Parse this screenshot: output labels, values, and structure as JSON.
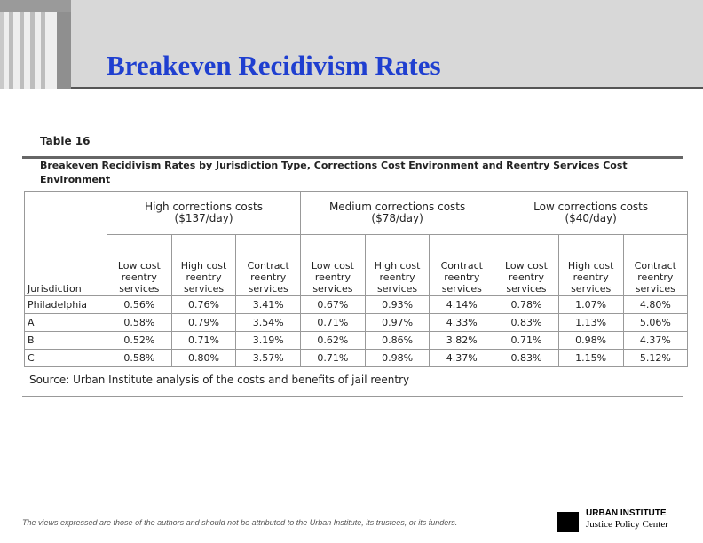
{
  "header": {
    "title": "Breakeven Recidivism Rates"
  },
  "table": {
    "label": "Table 16",
    "caption": "Breakeven Recidivism Rates by Jurisdiction Type, Corrections Cost Environment and Reentry Services Cost Environment",
    "groups": [
      {
        "name": "High corrections costs",
        "cost": "($137/day)"
      },
      {
        "name": "Medium corrections costs",
        "cost": "($78/day)"
      },
      {
        "name": "Low corrections costs",
        "cost": "($40/day)"
      }
    ],
    "columns": [
      "Jurisdiction",
      "Low cost reentry services",
      "High cost reentry services",
      "Contract reentry services",
      "Low cost reentry services",
      "High cost reentry services",
      "Contract reentry services",
      "Low cost reentry services",
      "High cost reentry services",
      "Contract reentry services"
    ],
    "rows": [
      [
        "Philadelphia",
        "0.56%",
        "0.76%",
        "3.41%",
        "0.67%",
        "0.93%",
        "4.14%",
        "0.78%",
        "1.07%",
        "4.80%"
      ],
      [
        "A",
        "0.58%",
        "0.79%",
        "3.54%",
        "0.71%",
        "0.97%",
        "4.33%",
        "0.83%",
        "1.13%",
        "5.06%"
      ],
      [
        "B",
        "0.52%",
        "0.71%",
        "3.19%",
        "0.62%",
        "0.86%",
        "3.82%",
        "0.71%",
        "0.98%",
        "4.37%"
      ],
      [
        "C",
        "0.58%",
        "0.80%",
        "3.57%",
        "0.71%",
        "0.98%",
        "4.37%",
        "0.83%",
        "1.15%",
        "5.12%"
      ]
    ],
    "source": "Source: Urban Institute analysis of the costs and benefits of jail reentry"
  },
  "footer": {
    "disclaimer": "The views expressed are those of the authors and should not be attributed to the Urban Institute, its trustees, or its funders.",
    "org": "URBAN INSTITUTE",
    "center": "Justice Policy Center"
  }
}
